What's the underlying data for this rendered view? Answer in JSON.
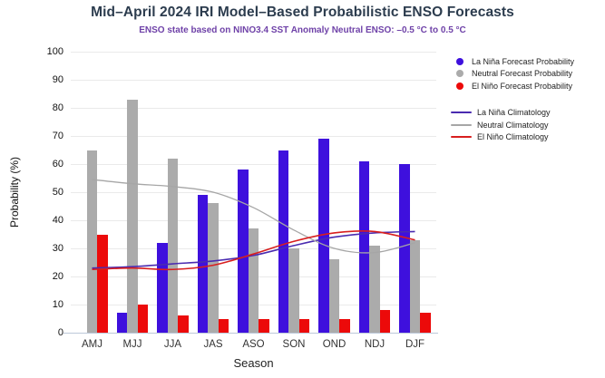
{
  "title": "Mid–April 2024 IRI Model–Based Probabilistic ENSO Forecasts",
  "subtitle": "ENSO state based on NINO3.4 SST Anomaly Neutral ENSO: –0.5 °C to 0.5 °C",
  "colors": {
    "la_nina_bar": "#3e10dd",
    "neutral_bar": "#ababab",
    "el_nino_bar": "#ec0a0a",
    "la_nina_line": "#4a2bb0",
    "neutral_line": "#a6a6a6",
    "el_nino_line": "#d81e1e",
    "gridline": "#eaeaea",
    "axis_baseline": "#bcc9da",
    "title_text": "#2c3c4e",
    "subtitle_text": "#6f42a8"
  },
  "legend": {
    "forecast_entries": [
      {
        "label": "La Niña Forecast Probability",
        "color": "#3e10dd",
        "swatch": "dot"
      },
      {
        "label": "Neutral Forecast Probability",
        "color": "#ababab",
        "swatch": "dot"
      },
      {
        "label": "El Niño Forecast Probability",
        "color": "#ec0a0a",
        "swatch": "dot"
      }
    ],
    "climatology_entries": [
      {
        "label": "La Niña Climatology",
        "color": "#4a2bb0",
        "swatch": "line"
      },
      {
        "label": "Neutral Climatology",
        "color": "#a6a6a6",
        "swatch": "line"
      },
      {
        "label": "El Niño Climatology",
        "color": "#d81e1e",
        "swatch": "line"
      }
    ]
  },
  "chart_data": {
    "type": "bar",
    "categories": [
      "AMJ",
      "MJJ",
      "JJA",
      "JAS",
      "ASO",
      "SON",
      "OND",
      "NDJ",
      "DJF"
    ],
    "bar_series": [
      {
        "name": "La Niña Forecast Probability",
        "color": "#3e10dd",
        "values": [
          0,
          7,
          32,
          49,
          58,
          65,
          69,
          61,
          60
        ]
      },
      {
        "name": "Neutral Forecast Probability",
        "color": "#ababab",
        "values": [
          65,
          83,
          62,
          46,
          37,
          30,
          26,
          31,
          33
        ]
      },
      {
        "name": "El Niño Forecast Probability",
        "color": "#ec0a0a",
        "values": [
          35,
          10,
          6,
          5,
          5,
          5,
          5,
          8,
          7
        ]
      }
    ],
    "line_series": [
      {
        "name": "La Niña Climatology",
        "color": "#4a2bb0",
        "values": [
          23,
          23.5,
          24.5,
          25.5,
          27.5,
          31,
          34,
          35.5,
          36
        ]
      },
      {
        "name": "Neutral Climatology",
        "color": "#a6a6a6",
        "values": [
          54.5,
          53,
          52,
          50,
          44.5,
          36.5,
          30,
          28.5,
          32
        ]
      },
      {
        "name": "El Niño Climatology",
        "color": "#d81e1e",
        "values": [
          22.5,
          23,
          22.5,
          24,
          28,
          32.5,
          35.5,
          36,
          33
        ]
      }
    ],
    "xlabel": "Season",
    "ylabel": "Probability (%)",
    "ylim": [
      0,
      100
    ],
    "ytick_step": 10,
    "grid": true,
    "legend_position": "top-right"
  }
}
